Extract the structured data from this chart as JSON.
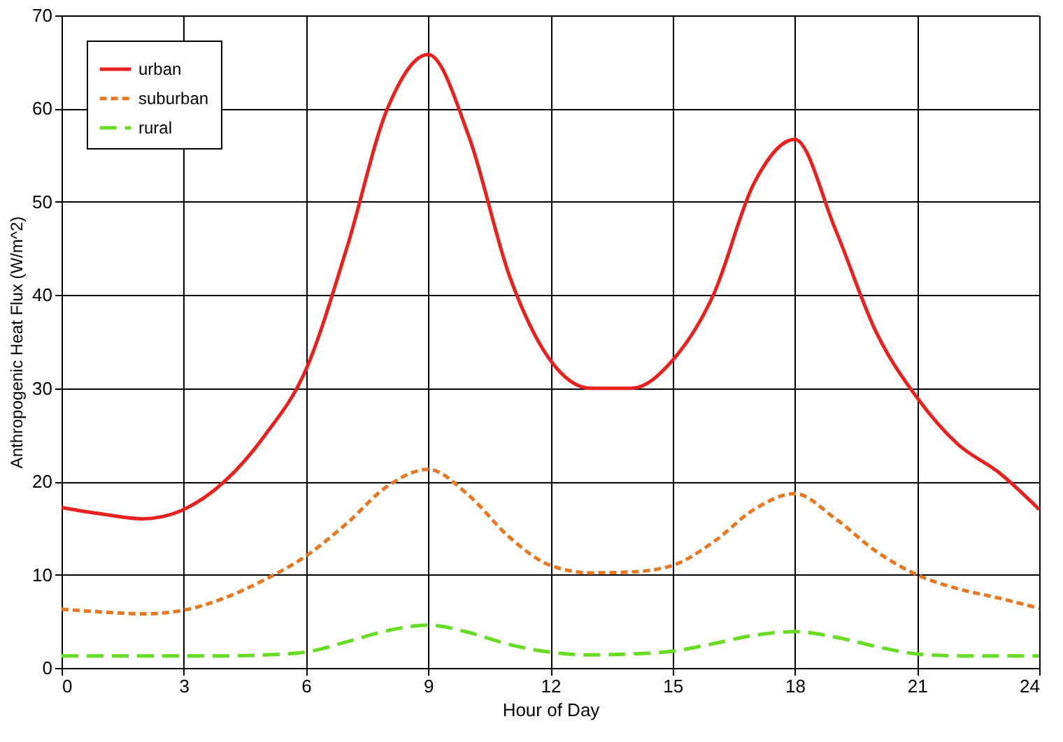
{
  "chart_data": {
    "type": "line",
    "xlabel": "Hour of Day",
    "ylabel": "Anthropogenic Heat Flux (W/m^2)",
    "x": [
      0,
      1,
      2,
      3,
      4,
      5,
      6,
      7,
      8,
      9,
      10,
      11,
      12,
      13,
      14,
      15,
      16,
      17,
      18,
      19,
      20,
      21,
      22,
      23,
      24
    ],
    "series": [
      {
        "name": "urban",
        "color": "#e8201e",
        "line_style": "solid",
        "values": [
          17.2,
          16.5,
          16,
          17,
          20,
          25,
          32,
          45,
          60,
          65.8,
          57,
          42,
          33,
          30,
          30,
          33,
          40,
          52,
          56.7,
          47,
          36,
          29,
          24,
          21,
          17
        ]
      },
      {
        "name": "suburban",
        "color": "#e87722",
        "line_style": "dashed",
        "values": [
          6.3,
          6,
          5.8,
          6.2,
          7.5,
          9.5,
          12,
          15.5,
          19.5,
          21.3,
          18.5,
          14,
          11,
          10.2,
          10.3,
          11,
          13.5,
          17,
          18.7,
          16,
          12.5,
          10,
          8.5,
          7.5,
          6.4
        ]
      },
      {
        "name": "rural",
        "color": "#66dd22",
        "line_style": "longdash",
        "values": [
          1.3,
          1.3,
          1.3,
          1.3,
          1.3,
          1.4,
          1.7,
          2.8,
          4,
          4.6,
          3.8,
          2.5,
          1.7,
          1.4,
          1.5,
          1.8,
          2.6,
          3.5,
          3.9,
          3.3,
          2.3,
          1.5,
          1.3,
          1.3,
          1.3
        ]
      }
    ],
    "xlim": [
      0,
      24
    ],
    "xticks": [
      0,
      3,
      6,
      9,
      12,
      15,
      18,
      21,
      24
    ],
    "ylim": [
      0,
      70
    ],
    "yticks": [
      0,
      10,
      20,
      30,
      40,
      50,
      60,
      70
    ],
    "grid": true,
    "legend": "top left",
    "marker": "none"
  }
}
